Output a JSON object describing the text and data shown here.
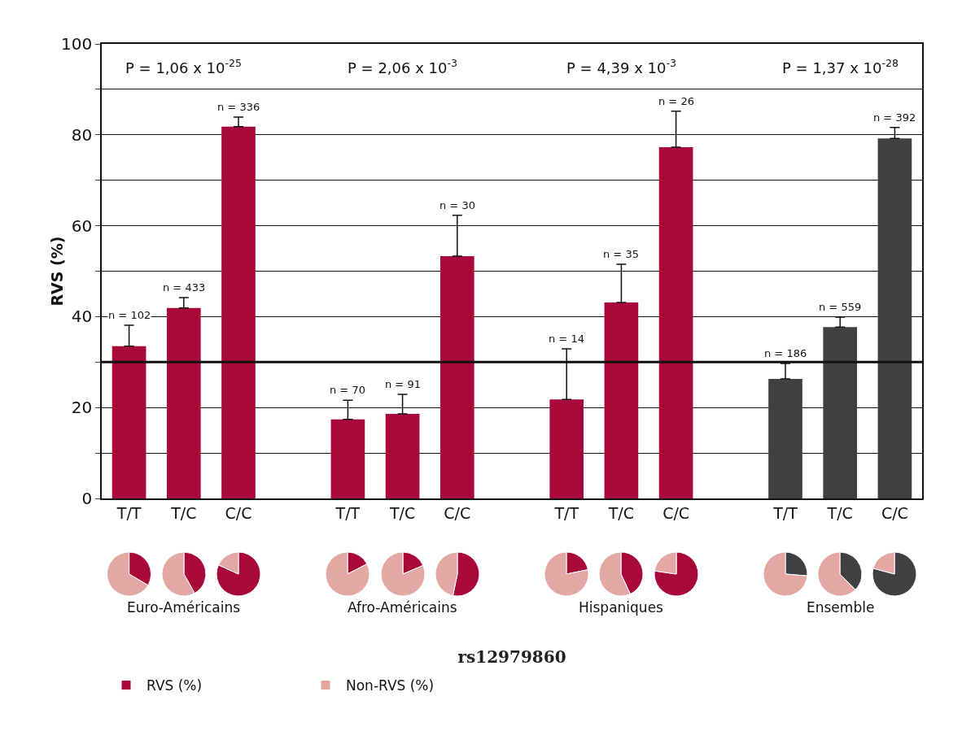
{
  "chart_data": [
    {
      "type": "bar",
      "ylabel": "RVS (%)",
      "xlabel": "rs12979860",
      "categories": [
        "T/T",
        "T/C",
        "C/C",
        null,
        "T/T",
        "T/C",
        "C/C",
        null,
        "T/T",
        "T/C",
        "C/C",
        null,
        "T/T",
        "T/C",
        "C/C"
      ],
      "values": [
        33.5,
        41.9,
        81.8,
        null,
        17.4,
        18.6,
        53.3,
        null,
        21.8,
        43.1,
        77.3,
        null,
        26.3,
        37.7,
        79.2
      ],
      "colors": [
        "#a8093a",
        "#a8093a",
        "#a8093a",
        "#a8093a",
        "#a8093a",
        "#a8093a",
        "#a8093a",
        "#a8093a",
        "#a8093a",
        "#a8093a",
        "#a8093a",
        "#a8093a",
        "#404040",
        "#404040",
        "#404040"
      ],
      "errors": [
        [
          33.5,
          38.1
        ],
        [
          41.9,
          44.2
        ],
        [
          81.8,
          83.9
        ],
        null,
        [
          17.4,
          21.6
        ],
        [
          18.6,
          22.9
        ],
        [
          53.3,
          62.3
        ],
        null,
        [
          21.8,
          32.9
        ],
        [
          43.1,
          51.5
        ],
        [
          77.3,
          85.2
        ],
        null,
        [
          26.3,
          29.7
        ],
        [
          37.7,
          39.9
        ],
        [
          79.2,
          81.6
        ]
      ],
      "ylim": [
        0,
        100
      ],
      "yticks": [
        0,
        {
          "value": 10,
          "label": null
        },
        20,
        {
          "value": 30,
          "label": null
        },
        40,
        {
          "value": 50,
          "label": null
        },
        60,
        {
          "value": 70,
          "label": null
        },
        80,
        {
          "value": 90,
          "label": null
        },
        100
      ],
      "grid": "y",
      "ref_lines": [
        {
          "axis": "y",
          "value": 30
        }
      ],
      "annotations": [
        "P = 1,06 x 10$^{-25}$",
        "P = 2,06 x 10$^{-3}$",
        "P = 4,39 x 10$^{-3}$",
        "P = 1,37 x 10$^{-28}$",
        "Euro-Américains",
        "Afro-Américains",
        "Hispaniques",
        "Ensemble",
        "n = 102",
        "n = 433",
        "n = 336",
        "n = 70",
        "n = 91",
        "n = 30",
        "n = 14",
        "n = 35",
        "n = 26",
        "n = 186",
        "n = 559",
        "n = 392"
      ]
    },
    {
      "type": "pie",
      "categories": [
        "RVS (%)",
        "Non-RVS (%)"
      ],
      "values": [
        33.5,
        66.5
      ],
      "colors": [
        "#a8093a",
        "#e4a8a4"
      ],
      "legend": "bottom right"
    },
    {
      "type": "pie",
      "categories": [
        null,
        null
      ],
      "values": [
        41.9,
        58.1
      ],
      "colors": [
        "#a8093a",
        "#e4a8a4"
      ]
    },
    {
      "type": "pie",
      "categories": [
        null,
        null
      ],
      "values": [
        81.8,
        18.2
      ],
      "colors": [
        "#a8093a",
        "#e4a8a4"
      ]
    },
    {
      "type": "pie",
      "categories": [
        null,
        null
      ],
      "values": [
        17.4,
        82.6
      ],
      "colors": [
        "#a8093a",
        "#e4a8a4"
      ]
    },
    {
      "type": "pie",
      "categories": [
        null,
        null
      ],
      "values": [
        18.6,
        81.4
      ],
      "colors": [
        "#a8093a",
        "#e4a8a4"
      ]
    },
    {
      "type": "pie",
      "categories": [
        null,
        null
      ],
      "values": [
        53.3,
        46.7
      ],
      "colors": [
        "#a8093a",
        "#e4a8a4"
      ]
    },
    {
      "type": "pie",
      "categories": [
        null,
        null
      ],
      "values": [
        21.8,
        78.2
      ],
      "colors": [
        "#a8093a",
        "#e4a8a4"
      ]
    },
    {
      "type": "pie",
      "categories": [
        null,
        null
      ],
      "values": [
        43.1,
        56.9
      ],
      "colors": [
        "#a8093a",
        "#e4a8a4"
      ]
    },
    {
      "type": "pie",
      "categories": [
        null,
        null
      ],
      "values": [
        77.3,
        22.7
      ],
      "colors": [
        "#a8093a",
        "#e4a8a4"
      ]
    },
    {
      "type": "pie",
      "categories": [
        null,
        null
      ],
      "values": [
        26.3,
        73.7
      ],
      "colors": [
        "#404040",
        "#e4a8a4"
      ]
    },
    {
      "type": "pie",
      "categories": [
        null,
        null
      ],
      "values": [
        37.7,
        62.3
      ],
      "colors": [
        "#404040",
        "#e4a8a4"
      ]
    },
    {
      "type": "pie",
      "categories": [
        null,
        null
      ],
      "values": [
        79.2,
        20.8
      ],
      "colors": [
        "#404040",
        "#e4a8a4"
      ]
    }
  ]
}
